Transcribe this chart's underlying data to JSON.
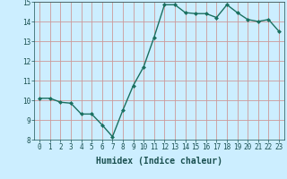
{
  "x": [
    0,
    1,
    2,
    3,
    4,
    5,
    6,
    7,
    8,
    9,
    10,
    11,
    12,
    13,
    14,
    15,
    16,
    17,
    18,
    19,
    20,
    21,
    22,
    23
  ],
  "y": [
    10.1,
    10.1,
    9.9,
    9.85,
    9.3,
    9.3,
    8.75,
    8.15,
    9.5,
    10.75,
    11.7,
    13.2,
    14.85,
    14.85,
    14.45,
    14.4,
    14.4,
    14.2,
    14.85,
    14.45,
    14.1,
    14.0,
    14.1,
    13.5
  ],
  "line_color": "#1a7060",
  "marker": "D",
  "marker_size": 2.0,
  "linewidth": 1.0,
  "xlabel": "Humidex (Indice chaleur)",
  "xlim": [
    -0.5,
    23.5
  ],
  "ylim": [
    8,
    15
  ],
  "yticks": [
    8,
    9,
    10,
    11,
    12,
    13,
    14,
    15
  ],
  "xticks": [
    0,
    1,
    2,
    3,
    4,
    5,
    6,
    7,
    8,
    9,
    10,
    11,
    12,
    13,
    14,
    15,
    16,
    17,
    18,
    19,
    20,
    21,
    22,
    23
  ],
  "bg_color": "#cceeff",
  "plot_bg_color": "#cceeff",
  "grid_color": "#cc9999",
  "tick_fontsize": 5.5,
  "xlabel_fontsize": 7.0,
  "tick_color": "#1a5050"
}
